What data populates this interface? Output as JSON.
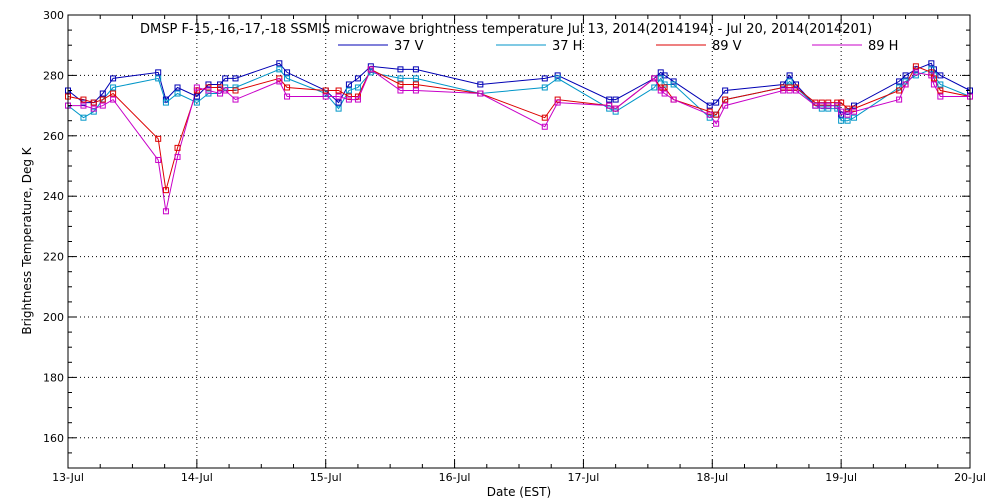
{
  "chart_data": {
    "type": "line",
    "title": "DMSP F-15,-16,-17,-18 SSMIS microwave brightness temperature Jul 13, 2014(2014194) - Jul 20, 2014(2014201)",
    "xlabel": "Date (EST)",
    "ylabel": "Brightness Temperature, Deg K",
    "xlim": [
      0,
      7
    ],
    "ylim": [
      150,
      300
    ],
    "yticks": [
      160,
      180,
      200,
      220,
      240,
      260,
      280,
      300
    ],
    "xtick_values": [
      0,
      1,
      2,
      3,
      4,
      5,
      6,
      7
    ],
    "xtick_labels": [
      "13-Jul",
      "14-Jul",
      "15-Jul",
      "16-Jul",
      "17-Jul",
      "18-Jul",
      "19-Jul",
      "20-Jul"
    ],
    "grid": true,
    "legend_position": "top-center",
    "series": [
      {
        "name": "37 V",
        "color": "#0000b4",
        "x": [
          0.0,
          0.12,
          0.2,
          0.27,
          0.35,
          0.7,
          0.76,
          0.85,
          1.0,
          1.09,
          1.18,
          1.22,
          1.3,
          1.64,
          1.7,
          2.0,
          2.1,
          2.18,
          2.25,
          2.35,
          2.58,
          2.7,
          3.2,
          3.7,
          3.8,
          4.2,
          4.25,
          4.55,
          4.6,
          4.63,
          4.7,
          4.98,
          5.03,
          5.1,
          5.55,
          5.6,
          5.65,
          5.8,
          5.85,
          5.9,
          5.97,
          6.0,
          6.05,
          6.1,
          6.45,
          6.5,
          6.58,
          6.7,
          6.72,
          6.77,
          7.0
        ],
        "y": [
          275,
          271,
          271,
          274,
          279,
          281,
          272,
          276,
          273,
          277,
          277,
          279,
          279,
          284,
          281,
          275,
          271,
          277,
          279,
          283,
          282,
          282,
          277,
          279,
          280,
          272,
          272,
          279,
          281,
          280,
          278,
          270,
          271,
          275,
          277,
          280,
          277,
          270,
          270,
          270,
          270,
          267,
          268,
          270,
          278,
          280,
          282,
          284,
          282,
          280,
          275
        ]
      },
      {
        "name": "37 H",
        "color": "#0096c8",
        "x": [
          0.0,
          0.12,
          0.2,
          0.27,
          0.35,
          0.7,
          0.76,
          0.85,
          1.0,
          1.09,
          1.18,
          1.22,
          1.3,
          1.64,
          1.7,
          2.0,
          2.1,
          2.18,
          2.25,
          2.35,
          2.58,
          2.7,
          3.2,
          3.7,
          3.8,
          4.2,
          4.25,
          4.55,
          4.6,
          4.63,
          4.7,
          4.98,
          5.03,
          5.1,
          5.55,
          5.6,
          5.65,
          5.8,
          5.85,
          5.9,
          5.97,
          6.0,
          6.05,
          6.1,
          6.45,
          6.5,
          6.58,
          6.7,
          6.72,
          6.77,
          7.0
        ],
        "y": [
          270,
          266,
          268,
          272,
          276,
          279,
          271,
          274,
          271,
          274,
          274,
          276,
          276,
          282,
          279,
          274,
          269,
          275,
          276,
          281,
          279,
          279,
          274,
          276,
          279,
          269,
          268,
          276,
          279,
          277,
          277,
          266,
          267,
          272,
          276,
          278,
          276,
          270,
          269,
          269,
          269,
          265,
          265,
          266,
          276,
          278,
          280,
          282,
          280,
          277,
          273
        ]
      },
      {
        "name": "89 V",
        "color": "#dc0000",
        "x": [
          0.0,
          0.12,
          0.2,
          0.27,
          0.35,
          0.7,
          0.76,
          0.85,
          1.0,
          1.09,
          1.18,
          1.22,
          1.3,
          1.64,
          1.7,
          2.0,
          2.1,
          2.18,
          2.25,
          2.35,
          2.58,
          2.7,
          3.2,
          3.7,
          3.8,
          4.2,
          4.25,
          4.55,
          4.6,
          4.63,
          4.7,
          4.98,
          5.03,
          5.1,
          5.55,
          5.6,
          5.65,
          5.8,
          5.85,
          5.9,
          5.97,
          6.0,
          6.05,
          6.1,
          6.45,
          6.5,
          6.58,
          6.7,
          6.72,
          6.77,
          7.0
        ],
        "y": [
          273,
          272,
          271,
          272,
          274,
          259,
          242,
          256,
          275,
          276,
          276,
          275,
          275,
          279,
          276,
          275,
          275,
          273,
          273,
          282,
          277,
          277,
          274,
          266,
          272,
          270,
          269,
          279,
          276,
          276,
          272,
          268,
          267,
          272,
          276,
          276,
          276,
          271,
          271,
          271,
          271,
          271,
          269,
          269,
          275,
          277,
          283,
          281,
          279,
          275,
          273
        ]
      },
      {
        "name": "89 H",
        "color": "#c800c8",
        "x": [
          0.0,
          0.12,
          0.2,
          0.27,
          0.35,
          0.7,
          0.76,
          0.85,
          1.0,
          1.09,
          1.18,
          1.22,
          1.3,
          1.64,
          1.7,
          2.0,
          2.1,
          2.18,
          2.25,
          2.35,
          2.58,
          2.7,
          3.2,
          3.7,
          3.8,
          4.2,
          4.25,
          4.55,
          4.6,
          4.63,
          4.7,
          4.98,
          5.03,
          5.1,
          5.55,
          5.6,
          5.65,
          5.8,
          5.85,
          5.9,
          5.97,
          6.0,
          6.05,
          6.1,
          6.45,
          6.5,
          6.58,
          6.7,
          6.72,
          6.77,
          7.0
        ],
        "y": [
          270,
          270,
          269,
          270,
          272,
          252,
          235,
          253,
          276,
          275,
          274,
          275,
          272,
          278,
          273,
          273,
          273,
          272,
          272,
          282,
          275,
          275,
          274,
          263,
          271,
          270,
          269,
          279,
          275,
          274,
          272,
          267,
          264,
          270,
          275,
          275,
          275,
          270,
          270,
          270,
          270,
          268,
          267,
          268,
          272,
          277,
          281,
          280,
          277,
          273,
          273
        ]
      }
    ]
  }
}
